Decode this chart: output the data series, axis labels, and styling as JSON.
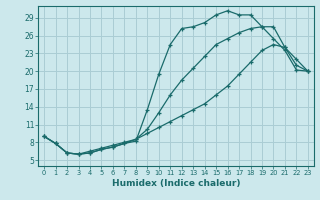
{
  "xlabel": "Humidex (Indice chaleur)",
  "background_color": "#cce8ec",
  "grid_color": "#aacdd4",
  "line_color": "#1a6b6b",
  "xlim": [
    -0.5,
    23.5
  ],
  "ylim": [
    4,
    31
  ],
  "xticks": [
    0,
    1,
    2,
    3,
    4,
    5,
    6,
    7,
    8,
    9,
    10,
    11,
    12,
    13,
    14,
    15,
    16,
    17,
    18,
    19,
    20,
    21,
    22,
    23
  ],
  "yticks": [
    5,
    8,
    11,
    14,
    17,
    20,
    23,
    26,
    29
  ],
  "line1_x": [
    0,
    1,
    2,
    3,
    4,
    5,
    6,
    7,
    8,
    9,
    10,
    11,
    12,
    13,
    14,
    15,
    16,
    17,
    18,
    19,
    20,
    21,
    22,
    23
  ],
  "line1_y": [
    9.0,
    7.8,
    6.2,
    6.0,
    6.2,
    6.8,
    7.2,
    7.8,
    8.2,
    13.5,
    19.5,
    24.5,
    27.2,
    27.5,
    28.2,
    29.5,
    30.2,
    29.5,
    29.5,
    27.5,
    25.5,
    23.5,
    20.2,
    20.0
  ],
  "line2_x": [
    0,
    1,
    2,
    3,
    4,
    5,
    6,
    7,
    8,
    9,
    10,
    11,
    12,
    13,
    14,
    15,
    16,
    17,
    18,
    19,
    20,
    21,
    22,
    23
  ],
  "line2_y": [
    9.0,
    7.8,
    6.2,
    6.0,
    6.2,
    6.8,
    7.2,
    7.8,
    8.5,
    10.2,
    13.0,
    16.0,
    18.5,
    20.5,
    22.5,
    24.5,
    25.5,
    26.5,
    27.2,
    27.5,
    27.5,
    24.0,
    21.0,
    20.0
  ],
  "line3_x": [
    0,
    1,
    2,
    3,
    4,
    5,
    6,
    7,
    8,
    9,
    10,
    11,
    12,
    13,
    14,
    15,
    16,
    17,
    18,
    19,
    20,
    21,
    22,
    23
  ],
  "line3_y": [
    9.0,
    7.8,
    6.2,
    6.0,
    6.5,
    7.0,
    7.5,
    8.0,
    8.5,
    9.5,
    10.5,
    11.5,
    12.5,
    13.5,
    14.5,
    16.0,
    17.5,
    19.5,
    21.5,
    23.5,
    24.5,
    24.0,
    22.0,
    20.0
  ]
}
